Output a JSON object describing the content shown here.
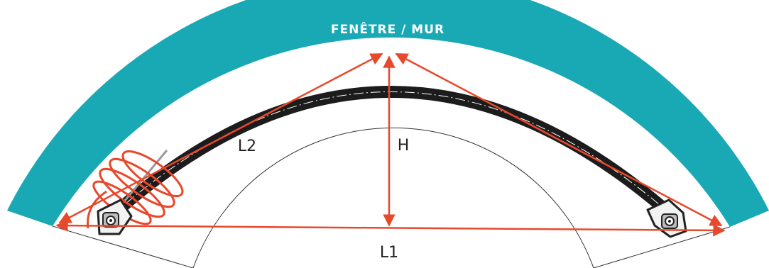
{
  "band": {
    "label": "FENÊTRE / MUR",
    "color": "#19a9b5"
  },
  "dimensions": {
    "h": "H",
    "l1": "L1",
    "l2": "L2",
    "arrow_color": "#e8482b"
  },
  "cable_color": "#1c1c1c",
  "coil_color": "#e8482b",
  "icons": [
    "left-suction-cup-icon",
    "right-suction-cup-icon",
    "spring-coil-icon"
  ]
}
